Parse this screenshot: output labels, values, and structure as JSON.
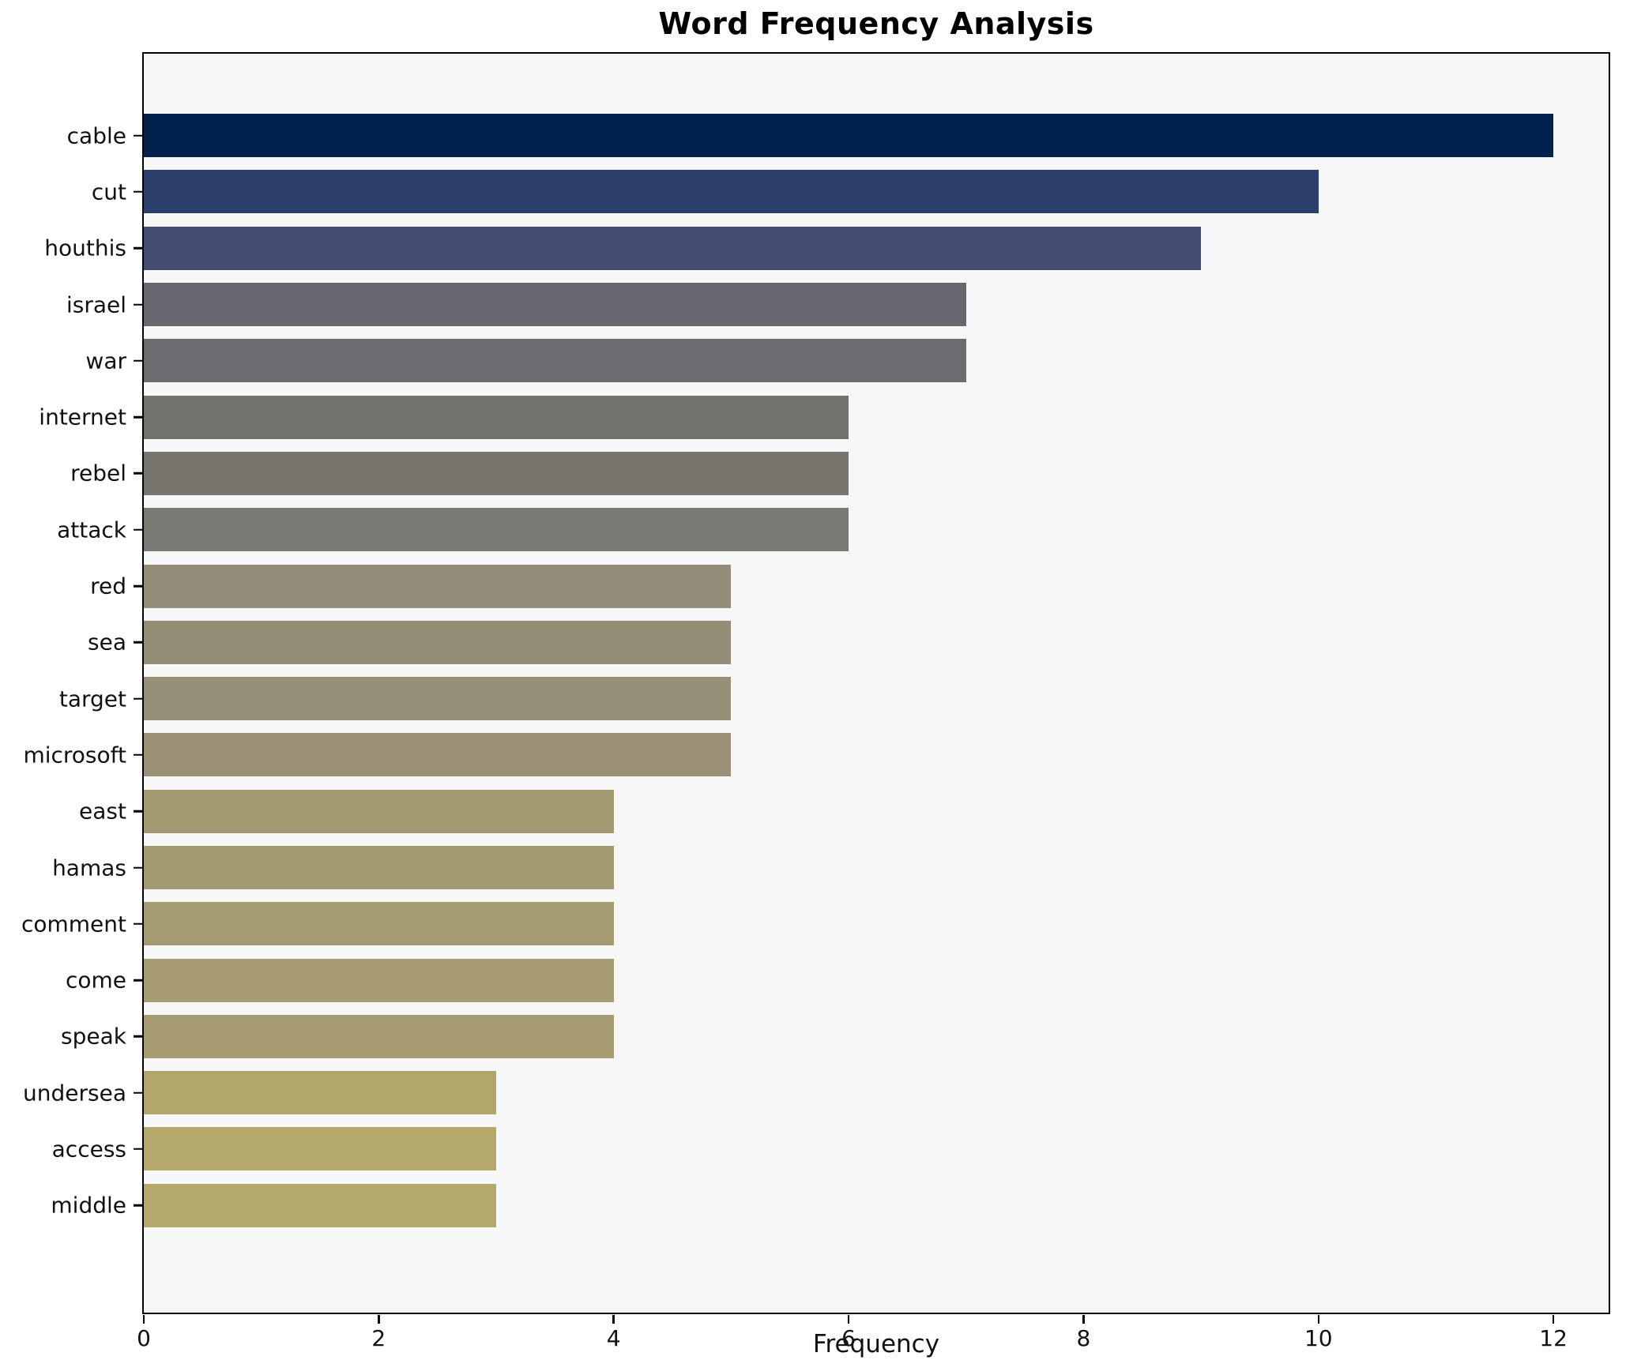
{
  "chart_data": {
    "type": "bar",
    "orientation": "horizontal",
    "title": "Word Frequency Analysis",
    "xlabel": "Frequency",
    "ylabel": "",
    "categories": [
      "cable",
      "cut",
      "houthis",
      "israel",
      "war",
      "internet",
      "rebel",
      "attack",
      "red",
      "sea",
      "target",
      "microsoft",
      "east",
      "hamas",
      "comment",
      "come",
      "speak",
      "undersea",
      "access",
      "middle"
    ],
    "values": [
      12,
      10,
      9,
      7,
      7,
      6,
      6,
      6,
      5,
      5,
      5,
      5,
      4,
      4,
      4,
      4,
      4,
      3,
      3,
      3
    ],
    "bar_colors": [
      "#01224d",
      "#2c3e6c",
      "#444e70",
      "#67686f",
      "#6b6b70",
      "#74726c",
      "#77756e",
      "#7a7a74",
      "#938d79",
      "#958e76",
      "#979076",
      "#9a9175",
      "#a39a71",
      "#a49a72",
      "#a59b72",
      "#a69b73",
      "#a79c73",
      "#b2a768",
      "#b4a96b",
      "#b4a96b"
    ],
    "x_ticks": [
      0,
      2,
      4,
      6,
      8,
      10,
      12
    ],
    "xlim": [
      0,
      12.47
    ],
    "grid": false,
    "legend": "none",
    "plot_background": "#f7f7f7",
    "page_background": "#ffffff",
    "spine_color": "#000000",
    "colormap": "cividis"
  }
}
